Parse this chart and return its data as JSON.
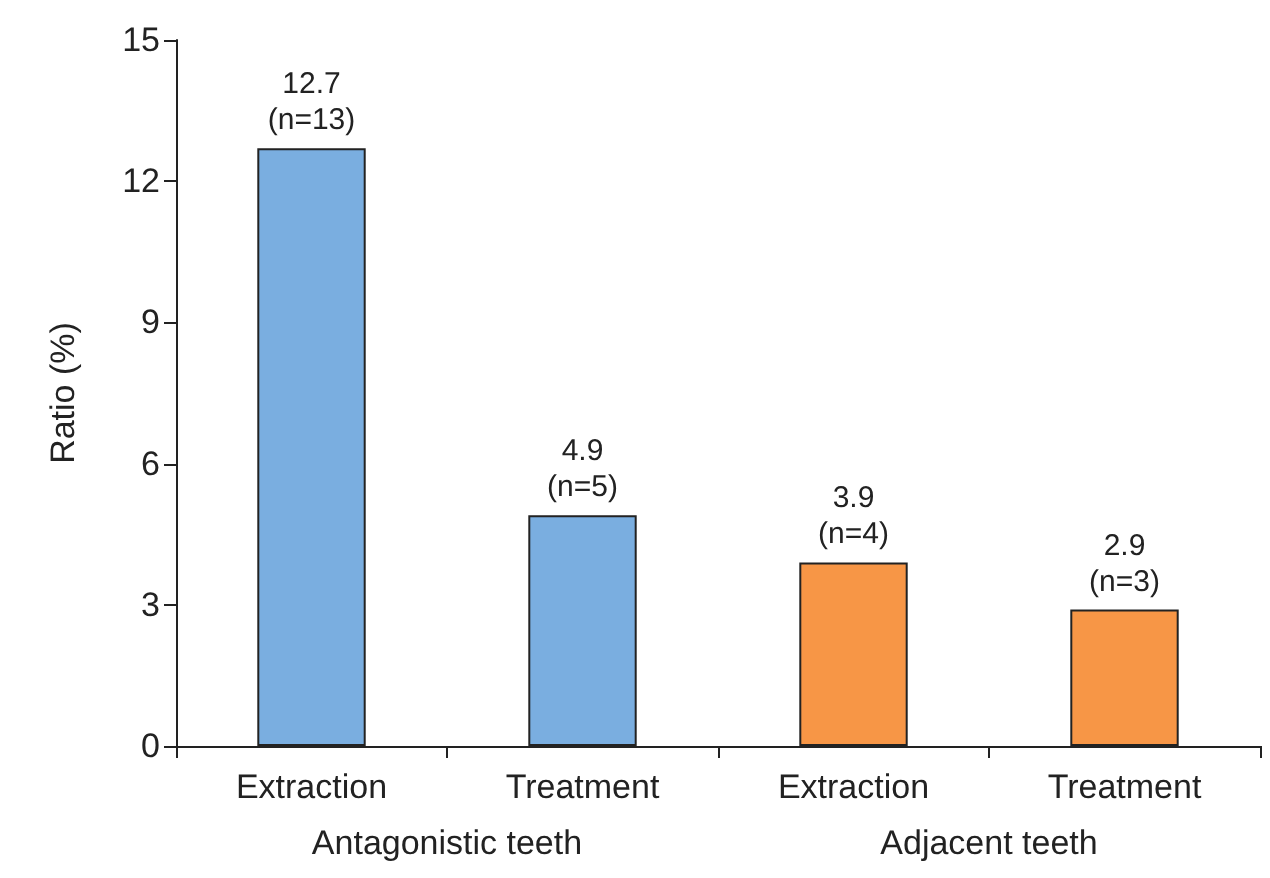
{
  "chart_data": {
    "type": "bar",
    "ylabel": "Ratio (%)",
    "categories": [
      "Extraction",
      "Treatment",
      "Extraction",
      "Treatment"
    ],
    "values": [
      12.7,
      4.9,
      3.9,
      2.9
    ],
    "colors": [
      "#7aaee0",
      "#7aaee0",
      "#f79646",
      "#f79646"
    ],
    "value_labels": [
      "12.7\n(n=13)",
      "4.9\n(n=5)",
      "3.9\n(n=4)",
      "2.9\n(n=3)"
    ],
    "annotations": [
      "Antagonistic teeth",
      "Adjacent teeth"
    ],
    "ylim": [
      0,
      15
    ],
    "yticks": [
      0,
      3,
      6,
      9,
      12,
      15
    ]
  }
}
